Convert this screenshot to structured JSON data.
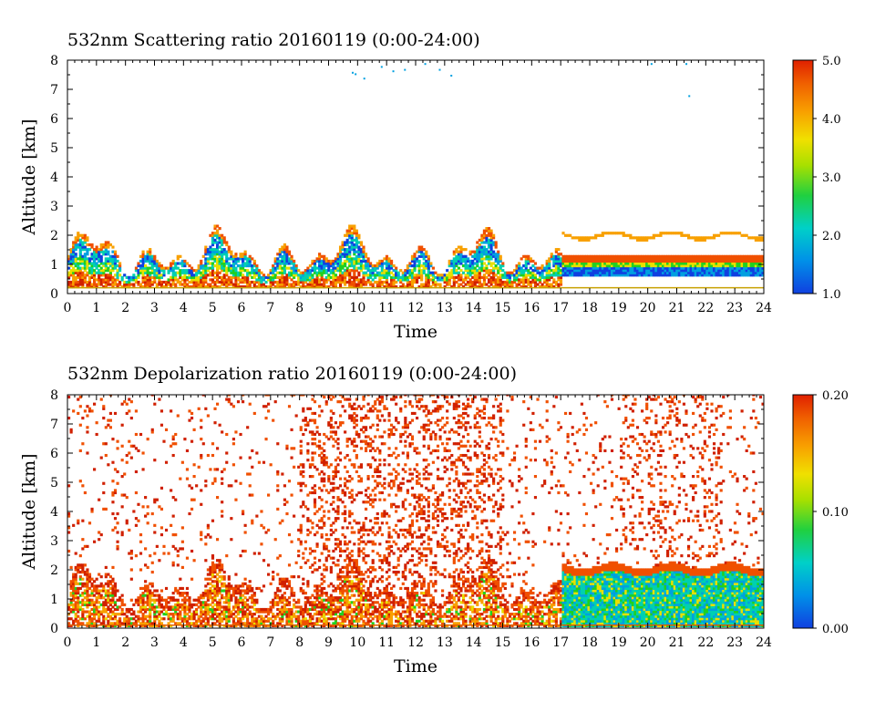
{
  "chart_data": [
    {
      "type": "heatmap",
      "title": "532nm Scattering ratio  20160119 (0:00-24:00)",
      "xlabel": "Time",
      "ylabel": "Altitude [km]",
      "xlim": [
        0,
        24
      ],
      "ylim": [
        0,
        8
      ],
      "xticks": [
        "0",
        "1",
        "2",
        "3",
        "4",
        "5",
        "6",
        "7",
        "8",
        "9",
        "10",
        "11",
        "12",
        "13",
        "14",
        "15",
        "16",
        "17",
        "18",
        "19",
        "20",
        "21",
        "22",
        "23",
        "24"
      ],
      "yticks": [
        "0",
        "1",
        "2",
        "3",
        "4",
        "5",
        "6",
        "7",
        "8"
      ],
      "colorbar": {
        "range": [
          1.0,
          5.0
        ],
        "ticks": [
          "1.0",
          "2.0",
          "3.0",
          "4.0",
          "5.0"
        ]
      },
      "colors": [
        "#1040e0",
        "#00a0e0",
        "#00d0b0",
        "#20d020",
        "#e8e000",
        "#f8a000",
        "#f05000",
        "#d02000"
      ],
      "grid": false
    },
    {
      "type": "heatmap",
      "title": "532nm Depolarization ratio  20160119 (0:00-24:00)",
      "xlabel": "Time",
      "ylabel": "Altitude [km]",
      "xlim": [
        0,
        24
      ],
      "ylim": [
        0,
        8
      ],
      "xticks": [
        "0",
        "1",
        "2",
        "3",
        "4",
        "5",
        "6",
        "7",
        "8",
        "9",
        "10",
        "11",
        "12",
        "13",
        "14",
        "15",
        "16",
        "17",
        "18",
        "19",
        "20",
        "21",
        "22",
        "23",
        "24"
      ],
      "yticks": [
        "0",
        "1",
        "2",
        "3",
        "4",
        "5",
        "6",
        "7",
        "8"
      ],
      "colorbar": {
        "range": [
          0.0,
          0.2
        ],
        "ticks": [
          "0.00",
          "0.10",
          "0.20"
        ]
      },
      "colors": [
        "#1040e0",
        "#00a0e0",
        "#00d0b0",
        "#20d020",
        "#e8e000",
        "#f8a000",
        "#f05000",
        "#d02000"
      ],
      "grid": false
    }
  ]
}
